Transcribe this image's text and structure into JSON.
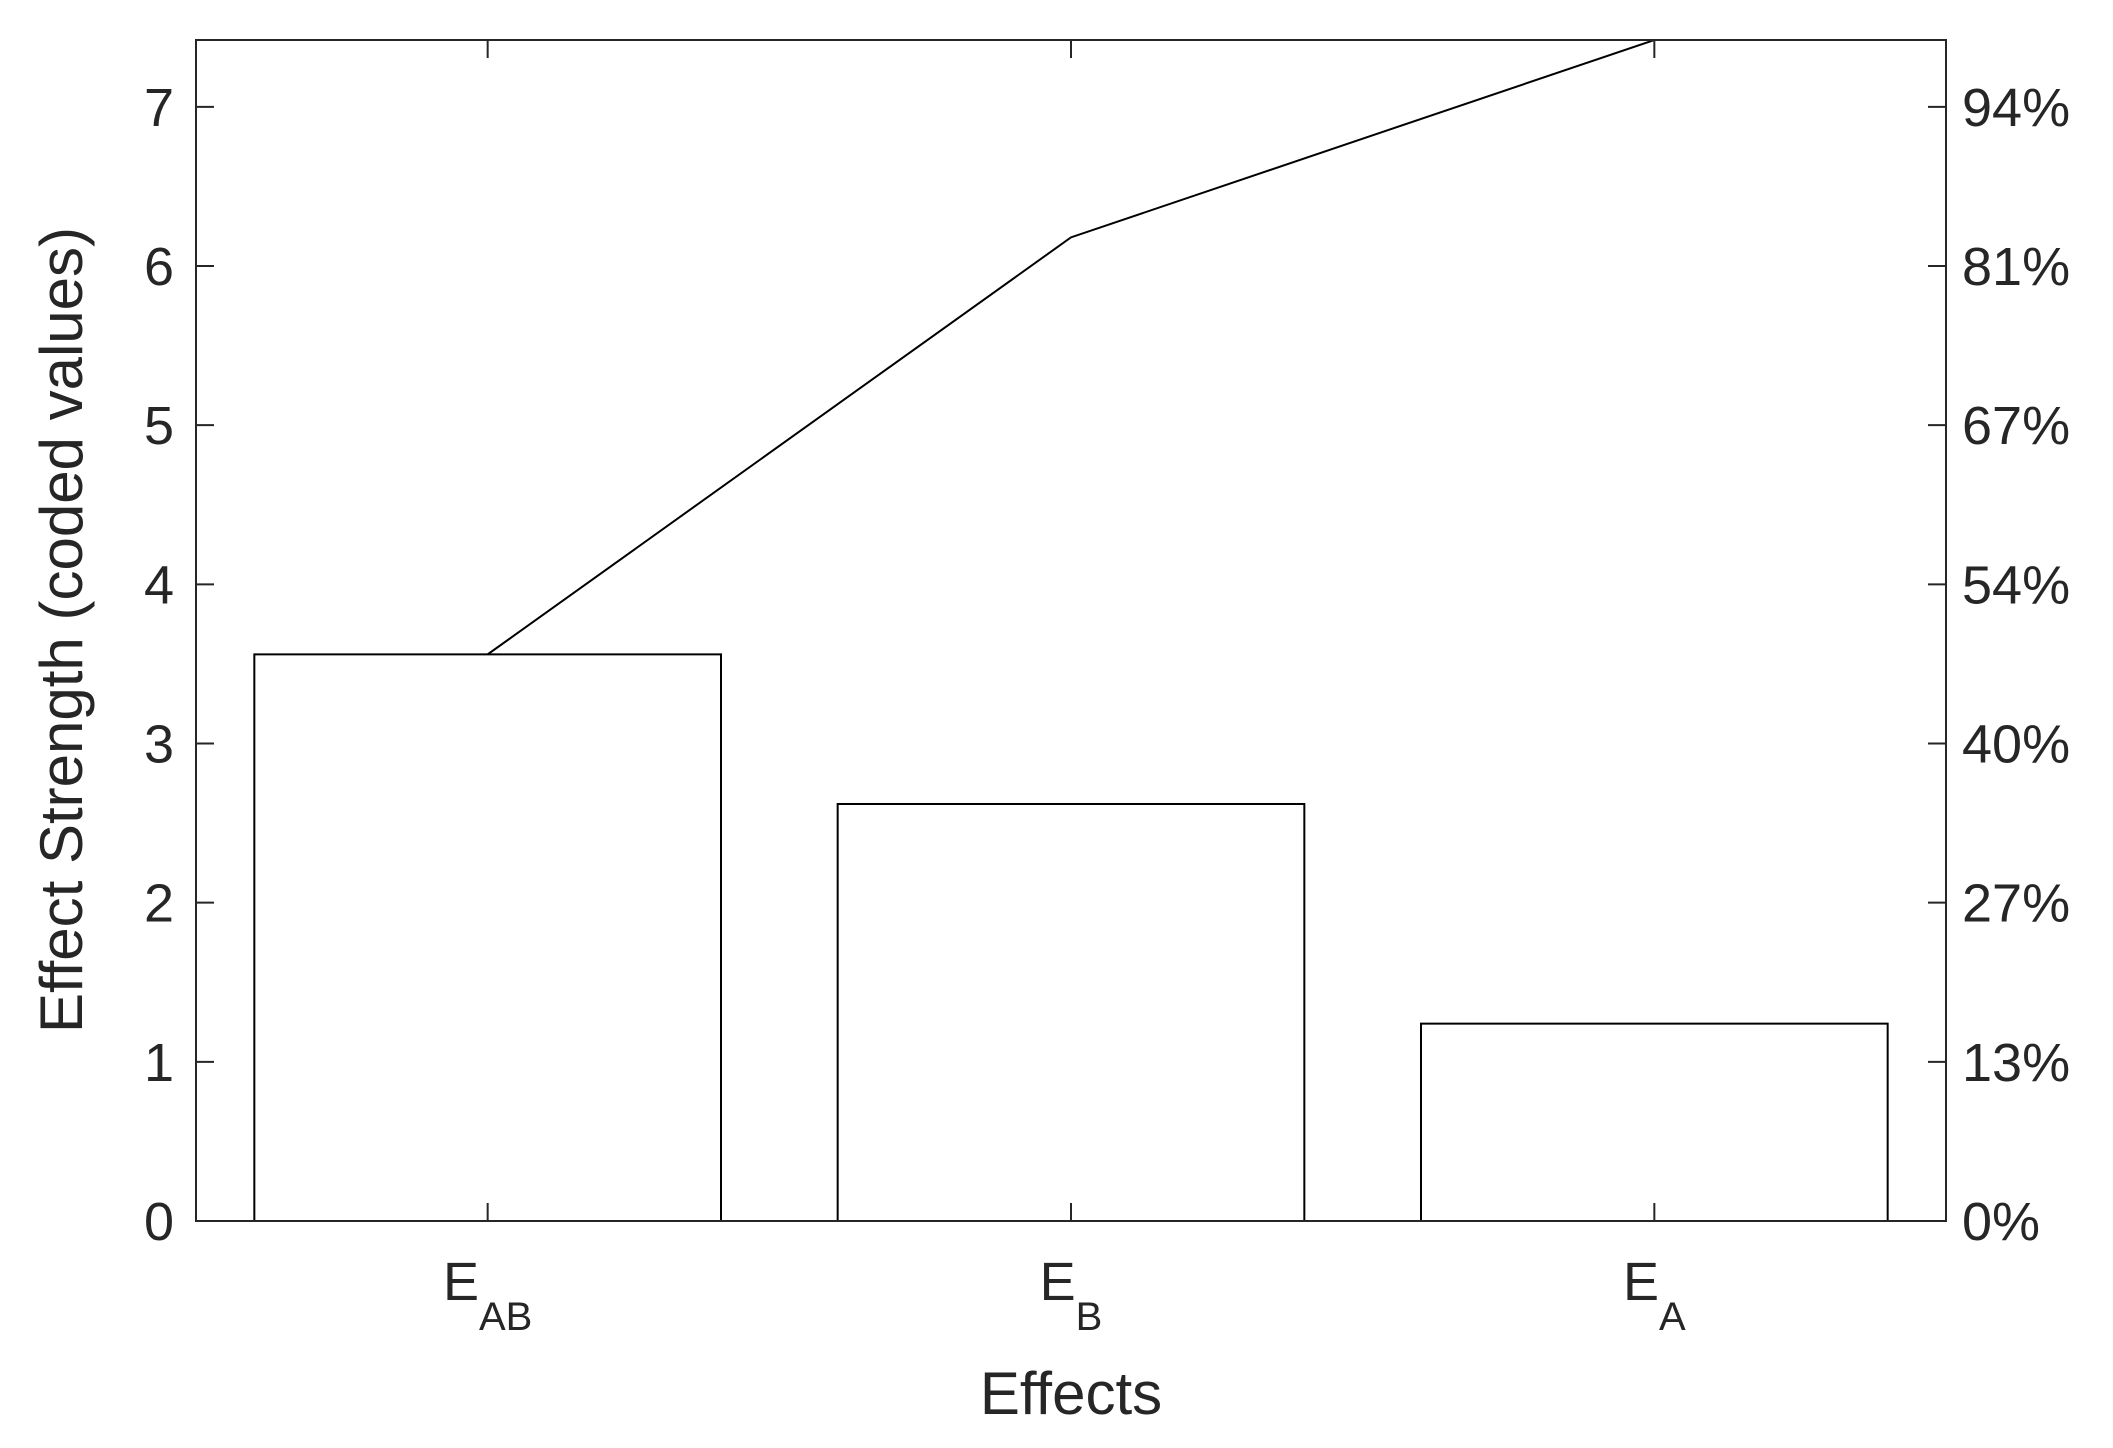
{
  "chart_data": {
    "type": "bar",
    "subtype": "pareto",
    "title": "",
    "xlabel": "Effects",
    "ylabel": "Effect Strength (coded values)",
    "categories": [
      {
        "base": "E",
        "sub": "AB"
      },
      {
        "base": "E",
        "sub": "B"
      },
      {
        "base": "E",
        "sub": "A"
      }
    ],
    "values": [
      3.56,
      2.62,
      1.24
    ],
    "cumulative_line": [
      3.56,
      6.18,
      7.42
    ],
    "ylim": [
      0,
      7.42
    ],
    "yticks": [
      0,
      1,
      2,
      3,
      4,
      5,
      6,
      7
    ],
    "right_ticks": [
      {
        "value": 0,
        "label": "0%"
      },
      {
        "value": 1,
        "label": "13%"
      },
      {
        "value": 2,
        "label": "27%"
      },
      {
        "value": 3,
        "label": "40%"
      },
      {
        "value": 4,
        "label": "54%"
      },
      {
        "value": 5,
        "label": "67%"
      },
      {
        "value": 6,
        "label": "81%"
      },
      {
        "value": 7,
        "label": "94%"
      }
    ],
    "grid": false,
    "legend": "none",
    "colors": {
      "bar_fill": "#ffffff",
      "bar_edge": "#000000",
      "line": "#000000",
      "axis": "#262626"
    }
  }
}
